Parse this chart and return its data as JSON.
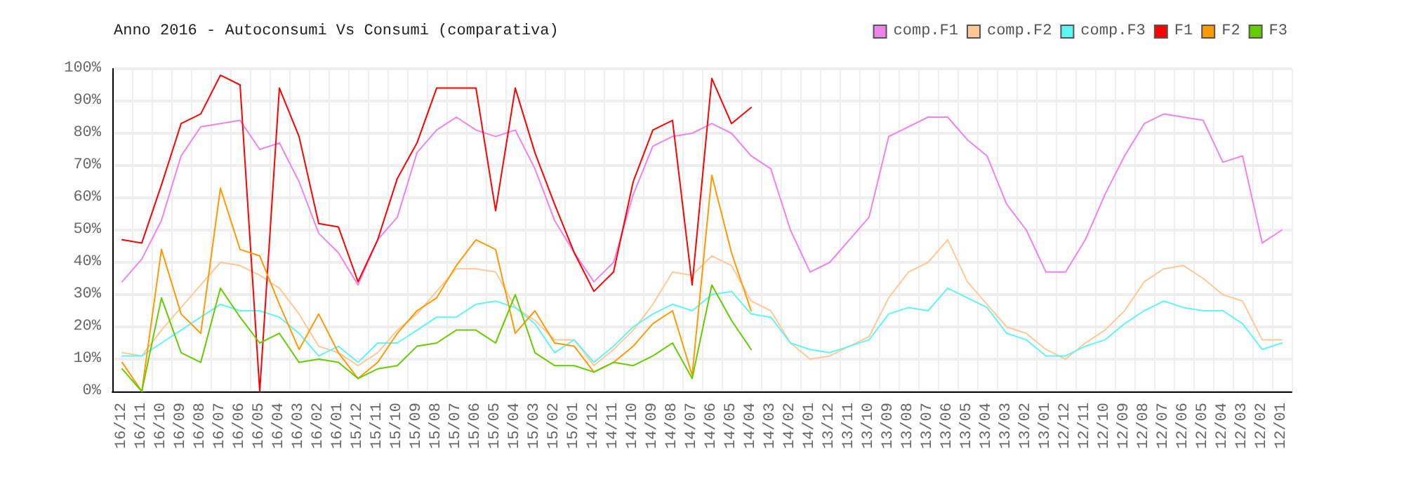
{
  "chart_data": {
    "type": "line",
    "title": "Anno 2016 - Autoconsumi Vs Consumi (comparativa)",
    "categories": [
      "16/12",
      "16/11",
      "16/10",
      "16/09",
      "16/08",
      "16/07",
      "16/06",
      "16/05",
      "16/04",
      "16/03",
      "16/02",
      "16/01",
      "15/12",
      "15/11",
      "15/10",
      "15/09",
      "15/08",
      "15/07",
      "15/06",
      "15/05",
      "15/04",
      "15/03",
      "15/02",
      "15/01",
      "14/12",
      "14/11",
      "14/10",
      "14/09",
      "14/08",
      "14/07",
      "14/06",
      "14/05",
      "14/04",
      "14/03",
      "14/02",
      "14/01",
      "13/12",
      "13/11",
      "13/10",
      "13/09",
      "13/08",
      "13/07",
      "13/06",
      "13/05",
      "13/04",
      "13/03",
      "13/02",
      "13/01",
      "12/12",
      "12/11",
      "12/10",
      "12/09",
      "12/08",
      "12/07",
      "12/06",
      "12/05",
      "12/04",
      "12/03",
      "12/02",
      "12/01"
    ],
    "series": [
      {
        "name": "comp.F1",
        "color": "#ee82ee",
        "values": [
          34,
          41,
          53,
          73,
          82,
          83,
          84,
          75,
          77,
          65,
          49,
          43,
          33,
          47,
          54,
          74,
          81,
          85,
          81,
          79,
          81,
          69,
          53,
          43,
          34,
          40,
          61,
          76,
          79,
          80,
          83,
          80,
          73,
          69,
          50,
          37,
          40,
          47,
          54,
          79,
          82,
          85,
          85,
          78,
          73,
          58,
          50,
          37,
          37,
          47,
          61,
          73,
          83,
          86,
          85,
          84,
          71,
          73,
          46,
          50
        ]
      },
      {
        "name": "comp.F2",
        "color": "#ffc896",
        "values": [
          12,
          11,
          19,
          26,
          33,
          40,
          39,
          36,
          32,
          24,
          14,
          12,
          8,
          12,
          19,
          24,
          31,
          38,
          38,
          37,
          26,
          22,
          16,
          16,
          8,
          13,
          19,
          27,
          37,
          36,
          42,
          39,
          28,
          25,
          15,
          10,
          11,
          14,
          17,
          29,
          37,
          40,
          47,
          34,
          27,
          20,
          18,
          13,
          10,
          15,
          19,
          25,
          34,
          38,
          39,
          35,
          30,
          28,
          16,
          16
        ]
      },
      {
        "name": "comp.F3",
        "color": "#5ff5f5",
        "values": [
          11,
          11,
          15,
          19,
          23,
          27,
          25,
          25,
          23,
          18,
          11,
          14,
          9,
          15,
          15,
          19,
          23,
          23,
          27,
          28,
          26,
          21,
          12,
          16,
          9,
          14,
          20,
          24,
          27,
          25,
          30,
          31,
          24,
          23,
          15,
          13,
          12,
          14,
          16,
          24,
          26,
          25,
          32,
          29,
          26,
          18,
          16,
          11,
          11,
          14,
          16,
          21,
          25,
          28,
          26,
          25,
          25,
          21,
          13,
          15
        ]
      },
      {
        "name": "F1",
        "color": "#ff0000",
        "values": [
          47,
          46,
          64,
          83,
          86,
          98,
          95,
          0,
          94,
          79,
          52,
          51,
          34,
          47,
          66,
          77,
          94,
          94,
          94,
          56,
          94,
          74,
          58,
          43,
          31,
          37,
          65,
          81,
          84,
          33,
          97,
          83,
          88,
          null,
          null,
          null,
          null,
          null,
          null,
          null,
          null,
          null,
          null,
          null,
          null,
          null,
          null,
          null,
          null,
          null,
          null,
          null,
          null,
          null,
          null,
          null,
          null,
          null,
          null,
          null
        ]
      },
      {
        "name": "F2",
        "color": "#ff9900",
        "values": [
          9,
          0,
          44,
          24,
          18,
          63,
          44,
          42,
          27,
          13,
          24,
          12,
          4,
          9,
          18,
          25,
          29,
          39,
          47,
          44,
          18,
          25,
          15,
          14,
          6,
          9,
          14,
          21,
          25,
          5,
          67,
          43,
          25,
          null,
          null,
          null,
          null,
          null,
          null,
          null,
          null,
          null,
          null,
          null,
          null,
          null,
          null,
          null,
          null,
          null,
          null,
          null,
          null,
          null,
          null,
          null,
          null,
          null,
          null,
          null
        ]
      },
      {
        "name": "F3",
        "color": "#66cc00",
        "values": [
          7,
          0,
          29,
          12,
          9,
          32,
          23,
          15,
          18,
          9,
          10,
          9,
          4,
          7,
          8,
          14,
          15,
          19,
          19,
          15,
          30,
          12,
          8,
          8,
          6,
          9,
          8,
          11,
          15,
          4,
          33,
          22,
          13,
          null,
          null,
          null,
          null,
          null,
          null,
          null,
          null,
          null,
          null,
          null,
          null,
          null,
          null,
          null,
          null,
          null,
          null,
          null,
          null,
          null,
          null,
          null,
          null,
          null,
          null,
          null
        ]
      }
    ],
    "ylim": [
      0,
      100
    ],
    "yticks": [
      {
        "value": 0,
        "label": "0%"
      },
      {
        "value": 10,
        "label": "10%"
      },
      {
        "value": 20,
        "label": "20%"
      },
      {
        "value": 30,
        "label": "30%"
      },
      {
        "value": 40,
        "label": "40%"
      },
      {
        "value": 50,
        "label": "50%"
      },
      {
        "value": 60,
        "label": "60%"
      },
      {
        "value": 70,
        "label": "70%"
      },
      {
        "value": 80,
        "label": "80%"
      },
      {
        "value": 90,
        "label": "90%"
      },
      {
        "value": 100,
        "label": "100%"
      }
    ],
    "grid": true,
    "legend": "top right",
    "marker": "none",
    "line_style": "solid"
  }
}
